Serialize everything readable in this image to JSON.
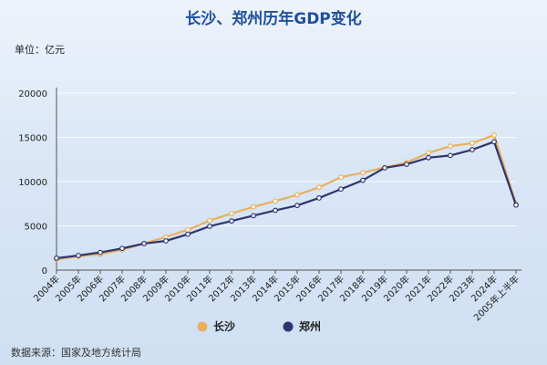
{
  "title": "长沙、郑州历年GDP变化",
  "unit_label": "单位：亿元",
  "source": "数据来源：国家及地方统计局",
  "colors": {
    "changsha": "#e8b05c",
    "zhengzhou": "#2e3570",
    "title": "#1f4f9c"
  },
  "chart_data": {
    "type": "line",
    "title": "长沙、郑州历年GDP变化",
    "ylabel": "单位：亿元",
    "xlabel": "",
    "ylim": [
      0,
      20000
    ],
    "yticks": [
      0,
      5000,
      10000,
      15000,
      20000
    ],
    "grid": true,
    "legend_position": "bottom",
    "categories": [
      "2004年",
      "2005年",
      "2006年",
      "2007年",
      "2008年",
      "2009年",
      "2010年",
      "2011年",
      "2012年",
      "2013年",
      "2014年",
      "2015年",
      "2016年",
      "2017年",
      "2018年",
      "2019年",
      "2020年",
      "2021年",
      "2022年",
      "2023年",
      "2024年",
      "2005年上半年"
    ],
    "series": [
      {
        "name": "长沙",
        "values": [
          1200,
          1550,
          1800,
          2300,
          3000,
          3750,
          4550,
          5600,
          6400,
          7150,
          7800,
          8500,
          9350,
          10500,
          11000,
          11600,
          12150,
          13250,
          14000,
          14350,
          15250,
          7500
        ]
      },
      {
        "name": "郑州",
        "values": [
          1350,
          1650,
          2000,
          2450,
          3000,
          3300,
          4050,
          4950,
          5550,
          6150,
          6750,
          7300,
          8150,
          9150,
          10150,
          11550,
          11950,
          12700,
          12950,
          13600,
          14500,
          7350
        ]
      }
    ]
  }
}
